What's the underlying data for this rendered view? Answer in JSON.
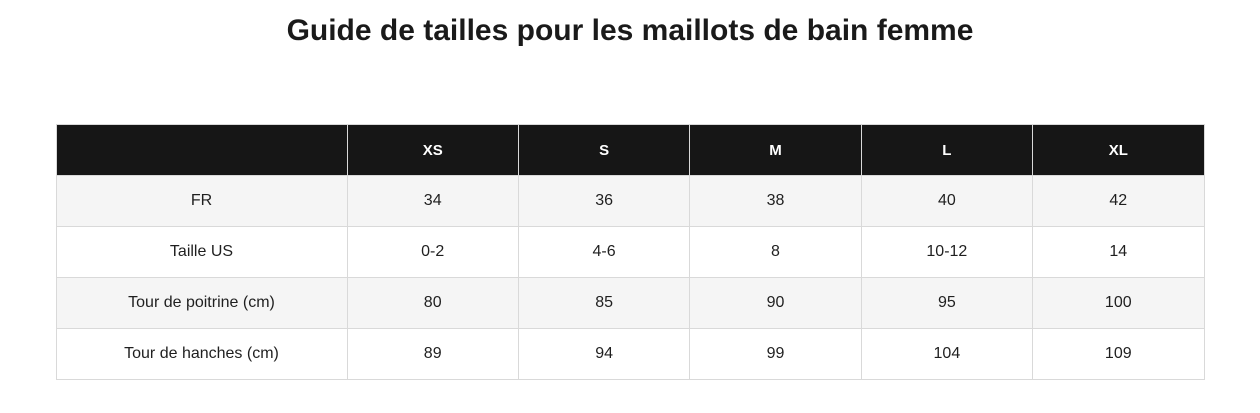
{
  "page": {
    "title": "Guide de tailles pour les maillots de bain femme"
  },
  "size_table": {
    "columns": [
      "",
      "XS",
      "S",
      "M",
      "L",
      "XL"
    ],
    "rows": [
      {
        "label": "FR",
        "values": [
          "34",
          "36",
          "38",
          "40",
          "42"
        ]
      },
      {
        "label": "Taille US",
        "values": [
          "0-2",
          "4-6",
          "8",
          "10-12",
          "14"
        ]
      },
      {
        "label": "Tour de poitrine (cm)",
        "values": [
          "80",
          "85",
          "90",
          "95",
          "100"
        ]
      },
      {
        "label": "Tour de hanches (cm)",
        "values": [
          "89",
          "94",
          "99",
          "104",
          "109"
        ]
      }
    ]
  },
  "colors": {
    "header_bg": "#161616",
    "header_text": "#ffffff",
    "stripe_bg": "#f5f5f5",
    "row_bg": "#ffffff",
    "border": "#d9d9d9",
    "text": "#1f1f1f"
  }
}
